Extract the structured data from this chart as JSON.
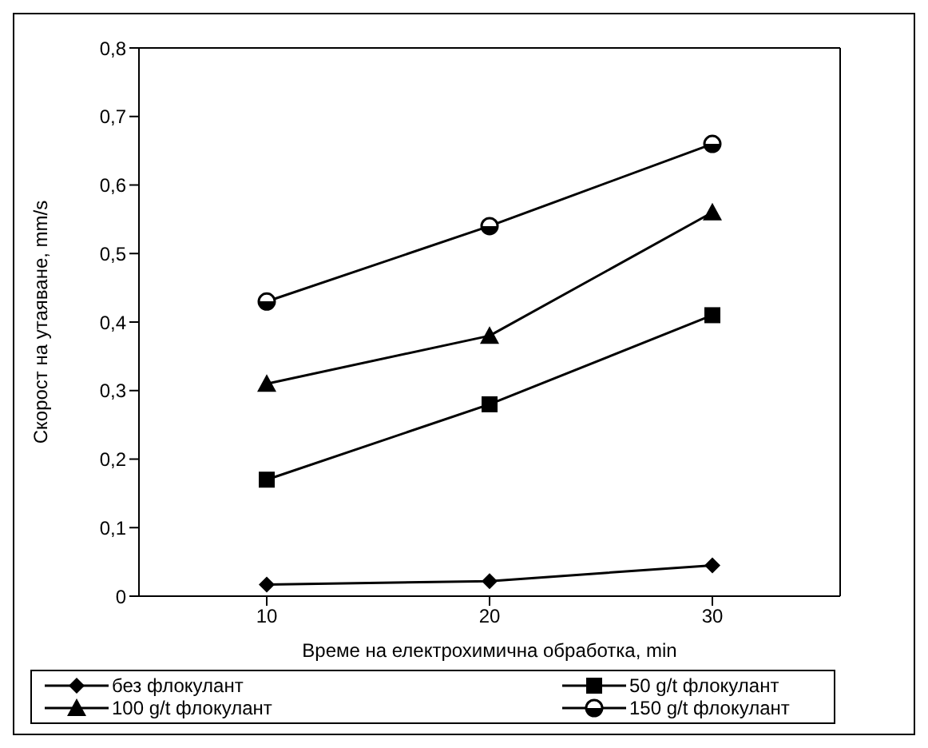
{
  "chart_data": {
    "type": "line",
    "xlabel": "Време на електрохимична обработка, min",
    "ylabel": "Скорост на утаяване, mm/s",
    "categories": [
      "10",
      "20",
      "30"
    ],
    "series": [
      {
        "name": "без флокулант",
        "color": "#000000",
        "marker": "diamond",
        "values": [
          0.017,
          0.022,
          0.045
        ]
      },
      {
        "name": "50 g/t флокулант",
        "color": "#000000",
        "marker": "square",
        "values": [
          0.17,
          0.28,
          0.41
        ]
      },
      {
        "name": "100 g/t флокулант",
        "color": "#000000",
        "marker": "triangle",
        "values": [
          0.31,
          0.38,
          0.56
        ]
      },
      {
        "name": "150 g/t флокулант",
        "color": "#000000",
        "marker": "circle",
        "values": [
          0.43,
          0.54,
          0.66
        ]
      }
    ],
    "ylim": [
      0,
      0.8
    ],
    "yticks": [
      {
        "value": 0,
        "label": "0"
      },
      {
        "value": 0.1,
        "label": "0,1"
      },
      {
        "value": 0.2,
        "label": "0,2"
      },
      {
        "value": 0.3,
        "label": "0,3"
      },
      {
        "value": 0.4,
        "label": "0,4"
      },
      {
        "value": 0.5,
        "label": "0,5"
      },
      {
        "value": 0.6,
        "label": "0,6"
      },
      {
        "value": 0.7,
        "label": "0,7"
      },
      {
        "value": 0.8,
        "label": "0,8"
      }
    ],
    "legend": "bottom"
  }
}
